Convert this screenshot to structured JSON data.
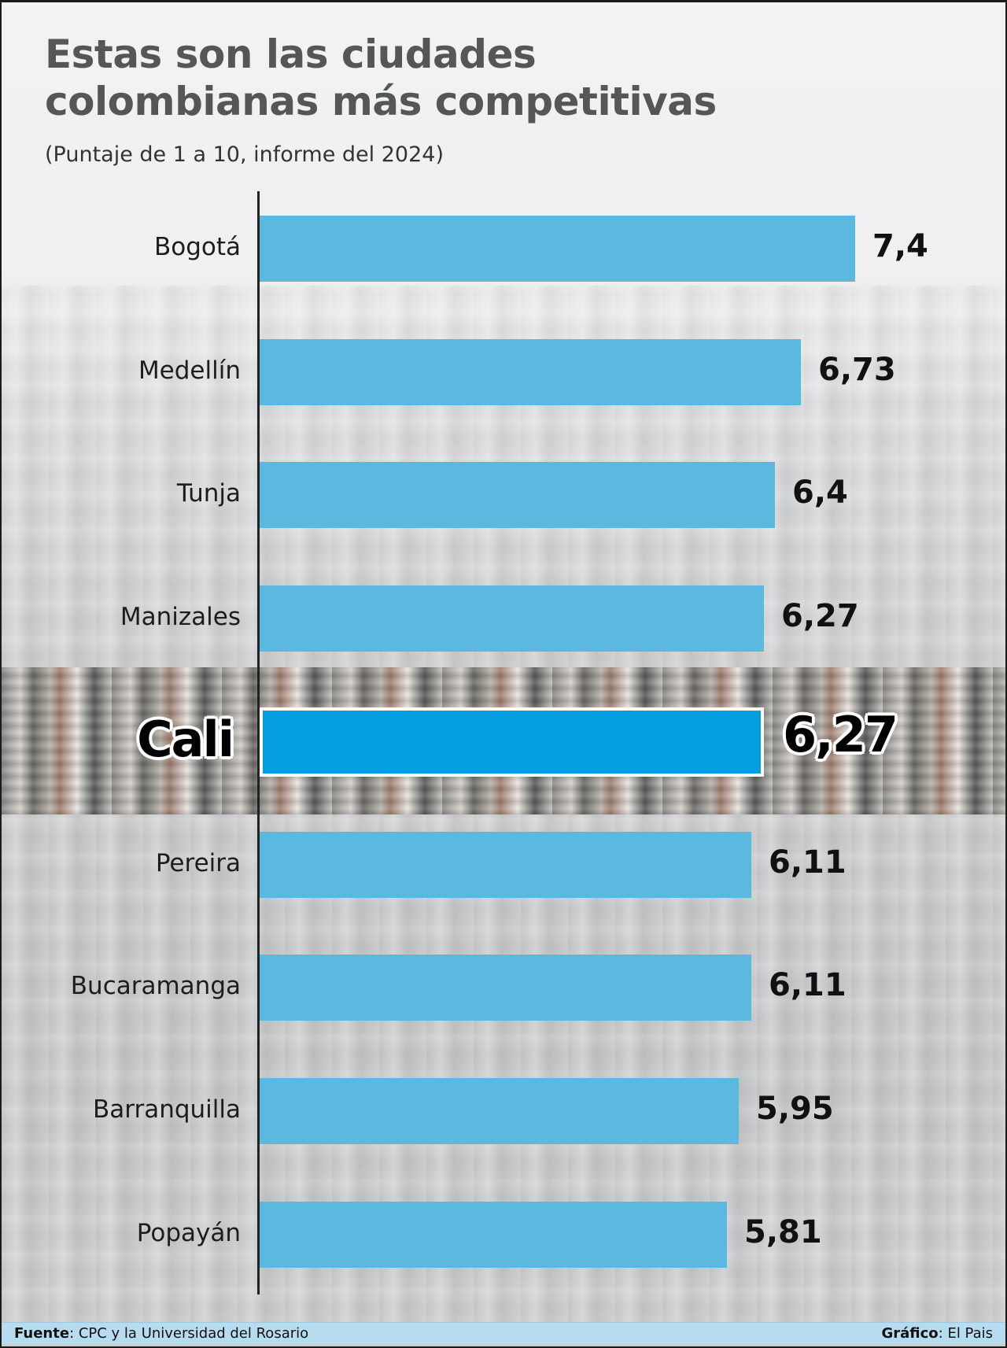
{
  "title_line1": "Estas son las ciudades",
  "title_line2": "colombianas más competitivas",
  "subtitle": "(Puntaje de 1 a 10, informe del 2024)",
  "footer": {
    "source_label": "Fuente",
    "source_text": ": CPC y la Universidad del Rosario",
    "credit_label": "Gráfico",
    "credit_text": ": El Pais"
  },
  "colors": {
    "bar": "#5bb8de",
    "highlight_bar": "#039de0",
    "footer_bg": "#b8dcef",
    "title": "#555657"
  },
  "rows": [
    {
      "city": "Bogotá",
      "value_label": "7,4",
      "value": 7.4,
      "highlight": false
    },
    {
      "city": "Medellín",
      "value_label": "6,73",
      "value": 6.73,
      "highlight": false
    },
    {
      "city": "Tunja",
      "value_label": "6,4",
      "value": 6.4,
      "highlight": false
    },
    {
      "city": "Manizales",
      "value_label": "6,27",
      "value": 6.27,
      "highlight": false
    },
    {
      "city": "Cali",
      "value_label": "6,27",
      "value": 6.27,
      "highlight": true
    },
    {
      "city": "Pereira",
      "value_label": "6,11",
      "value": 6.11,
      "highlight": false
    },
    {
      "city": "Bucaramanga",
      "value_label": "6,11",
      "value": 6.11,
      "highlight": false
    },
    {
      "city": "Barranquilla",
      "value_label": "5,95",
      "value": 5.95,
      "highlight": false
    },
    {
      "city": "Popayán",
      "value_label": "5,81",
      "value": 5.81,
      "highlight": false
    }
  ],
  "chart_data": {
    "type": "bar",
    "orientation": "horizontal",
    "title": "Estas son las ciudades colombianas más competitivas",
    "subtitle": "(Puntaje de 1 a 10, informe del 2024)",
    "categories": [
      "Bogotá",
      "Medellín",
      "Tunja",
      "Manizales",
      "Cali",
      "Pereira",
      "Bucaramanga",
      "Barranquilla",
      "Popayán"
    ],
    "values": [
      7.4,
      6.73,
      6.4,
      6.27,
      6.27,
      6.11,
      6.11,
      5.95,
      5.81
    ],
    "highlighted_category": "Cali",
    "xlabel": "",
    "ylabel": "",
    "xlim": [
      0,
      10
    ],
    "grid": false,
    "legend": null,
    "data_labels": true,
    "source": "Fuente: CPC y la Universidad del Rosario",
    "credit": "Gráfico: El Pais"
  }
}
